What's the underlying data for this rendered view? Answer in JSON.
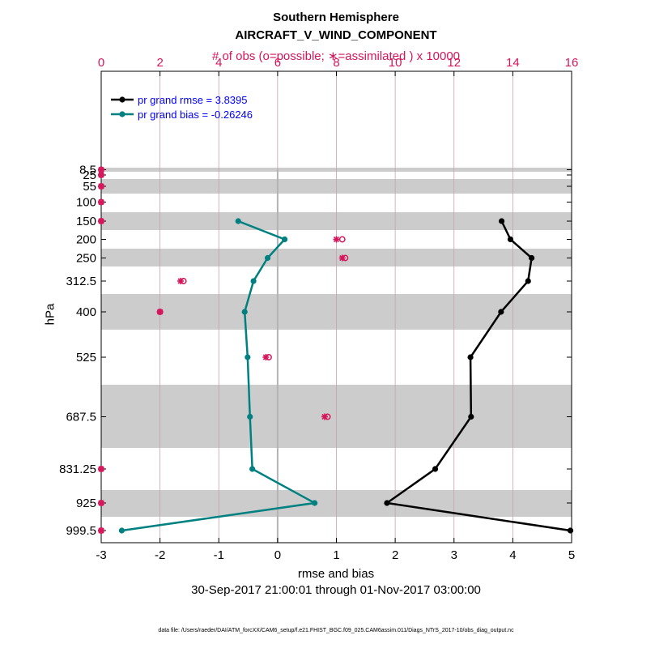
{
  "chart_data": {
    "type": "line",
    "title": "Southern Hemisphere",
    "subtitle": "AIRCRAFT_V_WIND_COMPONENT",
    "top_axis_label": "# of obs (o=possible; ∗=assimilated ) x 10000",
    "xlabel": "rmse and bias",
    "ylabel": "hPa",
    "date_range": "30-Sep-2017 21:00:01 through 01-Nov-2017 03:00:00",
    "footnote": "data file: /Users/raeder/DAI/ATM_forcXX/CAM6_setup/f.e21.FHIST_BGC.f09_025.CAM6assim.011/Diags_NTrS_2017-10/obs_diag_output.nc",
    "xlim": [
      -3,
      5
    ],
    "xticks": [
      "-3",
      "-2",
      "-1",
      "0",
      "1",
      "2",
      "3",
      "4",
      "5"
    ],
    "top_xlim": [
      0,
      16
    ],
    "top_xticks": [
      "0",
      "2",
      "4",
      "6",
      "8",
      "10",
      "12",
      "14",
      "16"
    ],
    "levels": [
      8.5,
      25,
      55,
      100,
      150,
      200,
      250,
      312.5,
      400,
      525,
      687.5,
      831.25,
      925,
      999.5
    ],
    "level_labels": [
      "8.5",
      "25",
      "55",
      "100",
      "150",
      "200",
      "250",
      "312.5",
      "400",
      "525",
      "687.5",
      "831.25",
      "925",
      "999.5"
    ],
    "legend": {
      "rmse_label": "pr grand rmse = 3.8395",
      "bias_label": "pr grand bias = -0.26246"
    },
    "series": [
      {
        "name": "rmse",
        "color": "#000000",
        "levels": [
          150,
          200,
          250,
          312.5,
          400,
          525,
          687.5,
          831.25,
          925,
          999.5
        ],
        "values": [
          3.81,
          3.96,
          4.32,
          4.26,
          3.8,
          3.28,
          3.29,
          2.68,
          1.86,
          4.98
        ]
      },
      {
        "name": "bias",
        "color": "#008080",
        "levels": [
          150,
          200,
          250,
          312.5,
          400,
          525,
          687.5,
          831.25,
          925,
          999.5
        ],
        "values": [
          -0.67,
          0.12,
          -0.17,
          -0.41,
          -0.56,
          -0.51,
          -0.47,
          -0.43,
          0.63,
          -2.65
        ]
      }
    ],
    "obs_counts": {
      "color": "#d6155b",
      "levels": [
        8.5,
        25,
        55,
        100,
        150,
        200,
        250,
        312.5,
        400,
        525,
        687.5,
        831.25,
        925,
        999.5
      ],
      "possible": [
        0,
        0,
        0,
        0,
        0,
        8.2,
        8.3,
        2.8,
        2.0,
        5.7,
        7.7,
        0,
        0,
        0
      ],
      "assimilated": [
        0,
        0,
        0,
        0,
        0,
        8.0,
        8.2,
        2.7,
        2.0,
        5.6,
        7.6,
        0,
        0,
        0
      ]
    },
    "colors": {
      "band": "#cccccc",
      "grid": "#c6a0ae",
      "zero_line": "#b3b3b3",
      "legend_text": "#0000ff"
    }
  }
}
